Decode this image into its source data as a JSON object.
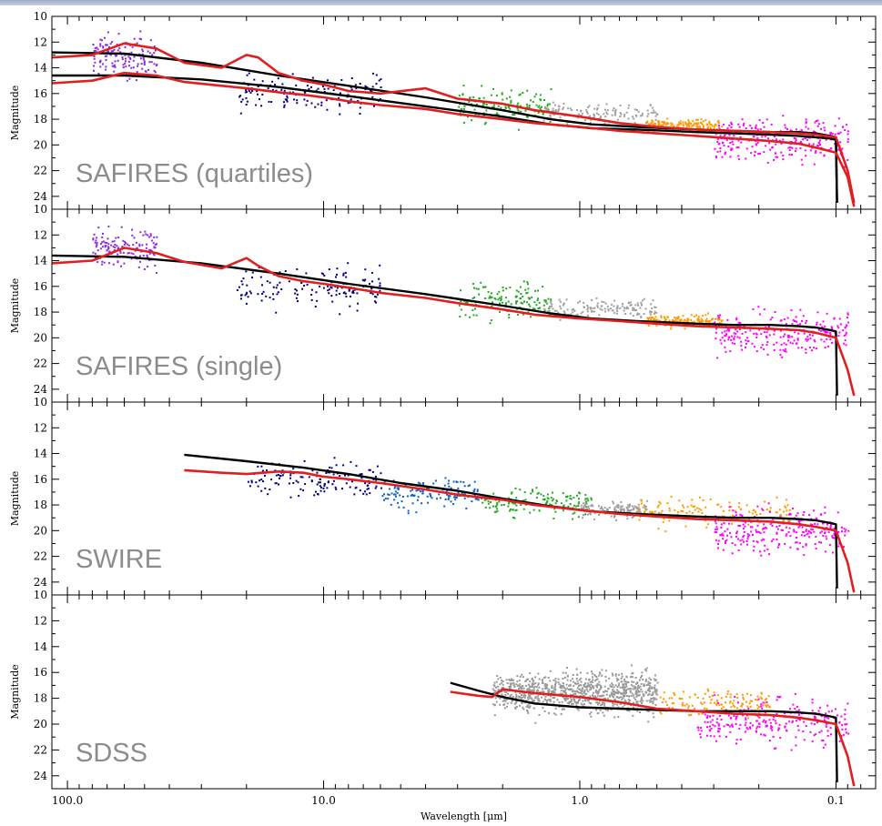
{
  "chart_data": {
    "type": "scatter",
    "xlabel": "Wavelength [μm]",
    "ylabel": "Magnitude",
    "x_scale": "log",
    "x_reversed": true,
    "xlim": [
      115,
      0.07
    ],
    "ylim": [
      25,
      10
    ],
    "x_tick_labels": [
      {
        "value": 100,
        "label": "100.0"
      },
      {
        "value": 10,
        "label": "10.0"
      },
      {
        "value": 1,
        "label": "1.0"
      },
      {
        "value": 0.1,
        "label": "0.1"
      }
    ],
    "y_tick_values": [
      12,
      14,
      16,
      18,
      20,
      22,
      24
    ],
    "panels": [
      {
        "label": "SAFIRES (quartiles)",
        "models": [
          {
            "name": "",
            "color": "#000000",
            "x": [
              115,
              60,
              30,
              15,
              8,
              4,
              2,
              1.3,
              0.9,
              0.6,
              0.45,
              0.35,
              0.25,
              0.18,
              0.14,
              0.12,
              0.105,
              0.1,
              0.099
            ],
            "y": [
              12.8,
              12.9,
              13.6,
              14.6,
              15.4,
              16.3,
              17.3,
              18.0,
              18.4,
              18.6,
              18.7,
              18.8,
              18.9,
              19.0,
              19.0,
              19.1,
              19.3,
              19.4,
              24.5
            ]
          },
          {
            "name": "",
            "color": "#000000",
            "x": [
              115,
              60,
              30,
              15,
              8,
              4,
              2,
              1.3,
              0.9,
              0.6,
              0.45,
              0.35,
              0.25,
              0.18,
              0.14,
              0.12,
              0.105,
              0.1,
              0.099
            ],
            "y": [
              14.6,
              14.6,
              14.9,
              15.5,
              16.2,
              17.0,
              17.8,
              18.4,
              18.7,
              18.8,
              18.9,
              19.0,
              19.1,
              19.2,
              19.3,
              19.4,
              19.5,
              19.6,
              24.5
            ]
          },
          {
            "name": "",
            "color": "#e02020",
            "x": [
              115,
              80,
              60,
              45,
              35,
              25,
              20,
              18,
              15,
              12,
              10,
              8,
              6,
              4,
              3,
              2,
              1.5,
              1.0,
              0.7,
              0.5,
              0.35,
              0.25,
              0.18,
              0.14,
              0.12,
              0.1,
              0.09,
              0.085
            ],
            "y": [
              13.2,
              13.0,
              12.1,
              12.5,
              13.6,
              14.0,
              13.0,
              13.2,
              14.4,
              15.0,
              15.3,
              15.8,
              16.0,
              15.6,
              16.4,
              16.8,
              17.3,
              17.8,
              18.3,
              18.6,
              18.8,
              18.9,
              19.0,
              19.1,
              19.2,
              19.4,
              22.0,
              24.5
            ]
          },
          {
            "name": "",
            "color": "#e02020",
            "x": [
              115,
              80,
              60,
              45,
              35,
              25,
              20,
              15,
              12,
              10,
              8,
              6,
              4,
              3,
              2,
              1.5,
              1.0,
              0.7,
              0.5,
              0.35,
              0.25,
              0.18,
              0.14,
              0.12,
              0.1,
              0.09,
              0.085
            ],
            "y": [
              15.2,
              15.0,
              14.4,
              14.6,
              15.1,
              15.4,
              15.6,
              15.9,
              16.1,
              16.3,
              16.6,
              16.9,
              17.2,
              17.6,
              18.0,
              18.3,
              18.6,
              18.9,
              19.1,
              19.3,
              19.5,
              19.7,
              19.9,
              20.2,
              20.6,
              22.5,
              24.8
            ]
          }
        ],
        "point_groups": [
          {
            "color": "#8a2be2",
            "x_range": [
              45,
              80
            ],
            "y_center": 13.0,
            "y_spread": 1.5
          },
          {
            "color": "#000080",
            "x_range": [
              6,
              22
            ],
            "y_center": 16.0,
            "y_spread": 1.3
          },
          {
            "color": "#22aa22",
            "x_range": [
              1.3,
              3
            ],
            "y_center": 17.0,
            "y_spread": 1.2
          },
          {
            "color": "#a0a0a0",
            "x_range": [
              0.5,
              1.4
            ],
            "y_center": 17.4,
            "y_spread": 0.7
          },
          {
            "color": "#ff9900",
            "x_range": [
              0.28,
              0.55
            ],
            "y_center": 18.4,
            "y_spread": 0.4
          },
          {
            "color": "#ff00ff",
            "x_range": [
              0.09,
              0.3
            ],
            "y_center": 19.6,
            "y_spread": 1.5
          }
        ]
      },
      {
        "label": "SAFIRES (single)",
        "models": [
          {
            "name": "",
            "color": "#000000",
            "x": [
              115,
              60,
              30,
              15,
              8,
              4,
              2,
              1.3,
              0.9,
              0.6,
              0.45,
              0.35,
              0.25,
              0.18,
              0.14,
              0.12,
              0.105,
              0.1,
              0.099
            ],
            "y": [
              13.6,
              13.7,
              14.2,
              15.0,
              15.8,
              16.6,
              17.5,
              18.1,
              18.5,
              18.7,
              18.8,
              18.9,
              19.0,
              19.0,
              19.1,
              19.2,
              19.4,
              19.5,
              24.5
            ]
          },
          {
            "name": "",
            "color": "#e02020",
            "x": [
              115,
              80,
              60,
              45,
              35,
              25,
              20,
              18,
              15,
              12,
              10,
              8,
              6,
              4,
              3,
              2,
              1.5,
              1.0,
              0.7,
              0.5,
              0.35,
              0.25,
              0.18,
              0.14,
              0.12,
              0.1,
              0.09,
              0.085
            ],
            "y": [
              14.2,
              14.0,
              13.0,
              13.4,
              14.1,
              14.6,
              13.8,
              14.4,
              15.2,
              15.6,
              15.8,
              16.1,
              16.5,
              16.9,
              17.3,
              17.8,
              18.2,
              18.5,
              18.7,
              18.9,
              19.1,
              19.2,
              19.3,
              19.4,
              19.6,
              20.0,
              22.5,
              24.5
            ]
          }
        ],
        "point_groups": [
          {
            "color": "#8a2be2",
            "x_range": [
              45,
              80
            ],
            "y_center": 13.0,
            "y_spread": 1.5
          },
          {
            "color": "#000080",
            "x_range": [
              6,
              22
            ],
            "y_center": 16.0,
            "y_spread": 1.3
          },
          {
            "color": "#22aa22",
            "x_range": [
              1.3,
              3
            ],
            "y_center": 17.2,
            "y_spread": 1.2
          },
          {
            "color": "#a0a0a0",
            "x_range": [
              0.5,
              1.4
            ],
            "y_center": 17.6,
            "y_spread": 0.7
          },
          {
            "color": "#ff9900",
            "x_range": [
              0.28,
              0.55
            ],
            "y_center": 18.6,
            "y_spread": 0.4
          },
          {
            "color": "#ff00ff",
            "x_range": [
              0.09,
              0.3
            ],
            "y_center": 19.6,
            "y_spread": 1.5
          }
        ]
      },
      {
        "label": "SWIRE",
        "models": [
          {
            "name": "",
            "color": "#000000",
            "x": [
              35,
              20,
              12,
              8,
              5,
              3,
              2,
              1.3,
              0.9,
              0.6,
              0.45,
              0.35,
              0.25,
              0.18,
              0.14,
              0.12,
              0.105,
              0.1,
              0.099
            ],
            "y": [
              14.1,
              14.6,
              15.1,
              15.6,
              16.3,
              16.9,
              17.5,
              18.1,
              18.5,
              18.7,
              18.8,
              18.9,
              19.0,
              19.0,
              19.1,
              19.2,
              19.4,
              19.5,
              24.5
            ]
          },
          {
            "name": "",
            "color": "#e02020",
            "x": [
              35,
              25,
              20,
              15,
              12,
              10,
              8,
              6,
              4,
              3,
              2,
              1.5,
              1.0,
              0.7,
              0.5,
              0.35,
              0.25,
              0.18,
              0.14,
              0.12,
              0.1,
              0.09,
              0.085
            ],
            "y": [
              15.3,
              15.5,
              15.6,
              15.4,
              15.5,
              15.8,
              16.0,
              16.3,
              16.8,
              17.2,
              17.6,
              18.0,
              18.4,
              18.7,
              18.9,
              19.1,
              19.2,
              19.3,
              19.5,
              19.7,
              20.0,
              22.5,
              24.8
            ]
          }
        ],
        "point_groups": [
          {
            "color": "#000080",
            "x_range": [
              6,
              20
            ],
            "y_center": 16.0,
            "y_spread": 1.2
          },
          {
            "color": "#1060c0",
            "x_range": [
              2.5,
              6
            ],
            "y_center": 17.0,
            "y_spread": 1.0
          },
          {
            "color": "#22aa22",
            "x_range": [
              0.9,
              2.5
            ],
            "y_center": 17.8,
            "y_spread": 1.0
          },
          {
            "color": "#a0a0a0",
            "x_range": [
              0.55,
              1.0
            ],
            "y_center": 18.3,
            "y_spread": 0.6
          },
          {
            "color": "#ff9900",
            "x_range": [
              0.15,
              0.6
            ],
            "y_center": 18.5,
            "y_spread": 1.0
          },
          {
            "color": "#ff00ff",
            "x_range": [
              0.09,
              0.3
            ],
            "y_center": 20.0,
            "y_spread": 1.5
          }
        ]
      },
      {
        "label": "SDSS",
        "models": [
          {
            "name": "",
            "color": "#000000",
            "x": [
              3.2,
              2.5,
              2.0,
              1.5,
              1.0,
              0.7,
              0.5,
              0.35,
              0.25,
              0.18,
              0.14,
              0.12,
              0.105,
              0.1,
              0.099
            ],
            "y": [
              16.8,
              17.4,
              17.9,
              18.4,
              18.7,
              18.8,
              18.9,
              19.0,
              19.0,
              19.0,
              19.1,
              19.2,
              19.4,
              19.5,
              24.5
            ]
          },
          {
            "name": "",
            "color": "#e02020",
            "x": [
              3.2,
              2.5,
              2.2,
              2.0,
              1.5,
              1.0,
              0.7,
              0.5,
              0.35,
              0.25,
              0.18,
              0.14,
              0.12,
              0.1,
              0.09,
              0.085
            ],
            "y": [
              17.5,
              17.8,
              17.9,
              17.3,
              17.6,
              17.9,
              18.3,
              18.8,
              19.0,
              19.2,
              19.3,
              19.5,
              19.7,
              20.0,
              22.5,
              24.8
            ]
          }
        ],
        "point_groups": [
          {
            "color": "#9a9a9a",
            "x_range": [
              0.5,
              2.2
            ],
            "y_center": 17.5,
            "y_spread": 1.4
          },
          {
            "color": "#ff9900",
            "x_range": [
              0.18,
              0.5
            ],
            "y_center": 18.3,
            "y_spread": 1.0
          },
          {
            "color": "#ff00ff",
            "x_range": [
              0.09,
              0.35
            ],
            "y_center": 19.8,
            "y_spread": 1.6
          }
        ]
      }
    ]
  }
}
